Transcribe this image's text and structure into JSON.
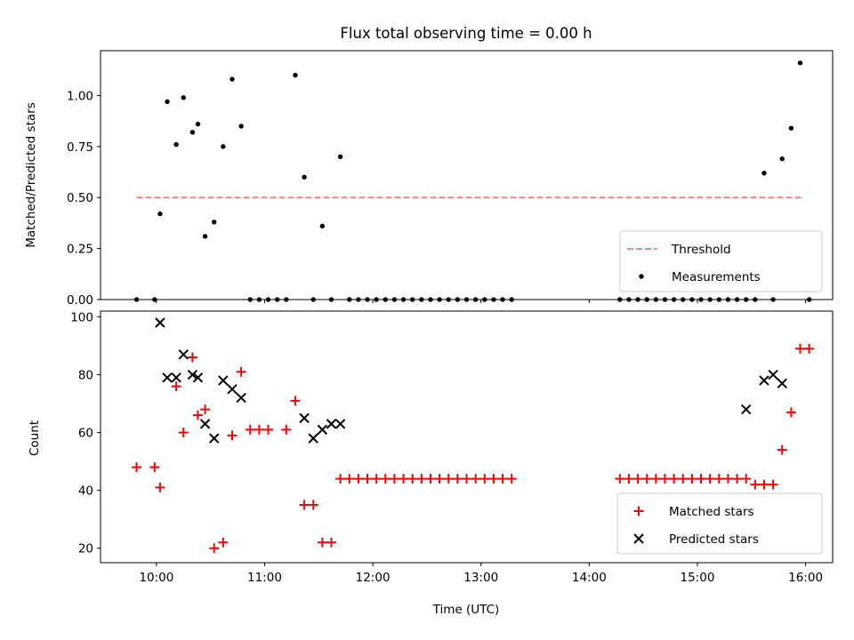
{
  "chart_data": [
    {
      "type": "scatter",
      "title": "Flux total observing time = 0.00 h",
      "xlabel": "",
      "ylabel": "Matched/Predicted stars",
      "xlim": [
        "09:29",
        "16:15"
      ],
      "ylim": [
        0,
        1.22
      ],
      "yticks": [
        "0.00",
        "0.25",
        "0.50",
        "0.75",
        "1.00"
      ],
      "x_tick_marks": [
        "10:00",
        "11:00",
        "12:00",
        "13:00",
        "14:00",
        "15:00",
        "16:00"
      ],
      "legend_position": "lower right",
      "series": [
        {
          "name": "Threshold",
          "style": "dashed-line",
          "color": "#ff8080",
          "x": [
            "09:49",
            "15:59"
          ],
          "y": [
            0.5,
            0.5
          ]
        },
        {
          "name": "Measurements",
          "style": "dot",
          "color": "#000000",
          "x": [
            "09:49",
            "09:59",
            "10:02",
            "10:06",
            "10:11",
            "10:15",
            "10:20",
            "10:23",
            "10:27",
            "10:32",
            "10:37",
            "10:42",
            "10:47",
            "10:52",
            "10:57",
            "11:02",
            "11:07",
            "11:12",
            "11:17",
            "11:22",
            "11:27",
            "11:32",
            "11:37",
            "11:42",
            "11:47",
            "11:52",
            "11:57",
            "12:02",
            "12:07",
            "12:12",
            "12:17",
            "12:22",
            "12:27",
            "12:32",
            "12:37",
            "12:42",
            "12:47",
            "12:52",
            "12:57",
            "13:02",
            "13:07",
            "13:12",
            "13:17",
            "14:17",
            "14:22",
            "14:27",
            "14:32",
            "14:37",
            "14:42",
            "14:47",
            "14:52",
            "14:57",
            "15:02",
            "15:07",
            "15:12",
            "15:17",
            "15:22",
            "15:27",
            "15:32",
            "15:37",
            "15:42",
            "15:47",
            "15:52",
            "15:57",
            "16:02"
          ],
          "y": [
            0.0,
            0.0,
            0.42,
            0.97,
            0.76,
            0.99,
            0.82,
            0.86,
            0.31,
            0.38,
            0.75,
            1.08,
            0.85,
            0.0,
            0.0,
            0.0,
            0.0,
            0.0,
            1.1,
            0.6,
            0.0,
            0.36,
            0.0,
            0.7,
            0.0,
            0.0,
            0.0,
            0.0,
            0.0,
            0.0,
            0.0,
            0.0,
            0.0,
            0.0,
            0.0,
            0.0,
            0.0,
            0.0,
            0.0,
            0.0,
            0.0,
            0.0,
            0.0,
            0.0,
            0.0,
            0.0,
            0.0,
            0.0,
            0.0,
            0.0,
            0.0,
            0.0,
            0.0,
            0.0,
            0.0,
            0.0,
            0.0,
            0.0,
            0.0,
            0.62,
            0.0,
            0.69,
            0.84,
            1.16,
            0.0
          ]
        }
      ]
    },
    {
      "type": "scatter",
      "title": "",
      "xlabel": "Time (UTC)",
      "ylabel": "Count",
      "xlim": [
        "09:29",
        "16:15"
      ],
      "ylim": [
        15,
        102
      ],
      "yticks": [
        "20",
        "40",
        "60",
        "80",
        "100"
      ],
      "xticks": [
        "10:00",
        "11:00",
        "12:00",
        "13:00",
        "14:00",
        "15:00",
        "16:00"
      ],
      "legend_position": "lower right",
      "series": [
        {
          "name": "Matched stars",
          "marker": "plus",
          "color": "#ff0000",
          "x": [
            "09:49",
            "09:59",
            "10:02",
            "10:11",
            "10:15",
            "10:20",
            "10:23",
            "10:27",
            "10:32",
            "10:37",
            "10:42",
            "10:47",
            "10:52",
            "10:57",
            "11:02",
            "11:12",
            "11:17",
            "11:22",
            "11:27",
            "11:32",
            "11:37",
            "11:42",
            "11:47",
            "11:52",
            "11:57",
            "12:02",
            "12:07",
            "12:12",
            "12:17",
            "12:22",
            "12:27",
            "12:32",
            "12:37",
            "12:42",
            "12:47",
            "12:52",
            "12:57",
            "13:02",
            "13:07",
            "13:12",
            "13:17",
            "14:17",
            "14:22",
            "14:27",
            "14:32",
            "14:37",
            "14:42",
            "14:47",
            "14:52",
            "14:57",
            "15:02",
            "15:07",
            "15:12",
            "15:17",
            "15:22",
            "15:27",
            "15:32",
            "15:37",
            "15:42",
            "15:47",
            "15:52",
            "15:57",
            "16:02"
          ],
          "y": [
            48,
            48,
            41,
            76,
            60,
            86,
            66,
            68,
            20,
            22,
            59,
            81,
            61,
            61,
            61,
            61,
            71,
            35,
            35,
            22,
            22,
            44,
            44,
            44,
            44,
            44,
            44,
            44,
            44,
            44,
            44,
            44,
            44,
            44,
            44,
            44,
            44,
            44,
            44,
            44,
            44,
            44,
            44,
            44,
            44,
            44,
            44,
            44,
            44,
            44,
            44,
            44,
            44,
            44,
            44,
            44,
            42,
            42,
            42,
            54,
            67,
            89,
            89
          ]
        },
        {
          "name": "Predicted stars",
          "marker": "x",
          "color": "#000000",
          "x": [
            "10:02",
            "10:06",
            "10:11",
            "10:15",
            "10:20",
            "10:23",
            "10:27",
            "10:32",
            "10:37",
            "10:42",
            "10:47",
            "11:22",
            "11:27",
            "11:32",
            "11:37",
            "11:42",
            "15:27",
            "15:37",
            "15:42",
            "15:47"
          ],
          "y": [
            98,
            79,
            79,
            87,
            80,
            79,
            63,
            58,
            78,
            75,
            72,
            65,
            58,
            61,
            63,
            63,
            68,
            78,
            80,
            77
          ]
        }
      ]
    }
  ]
}
